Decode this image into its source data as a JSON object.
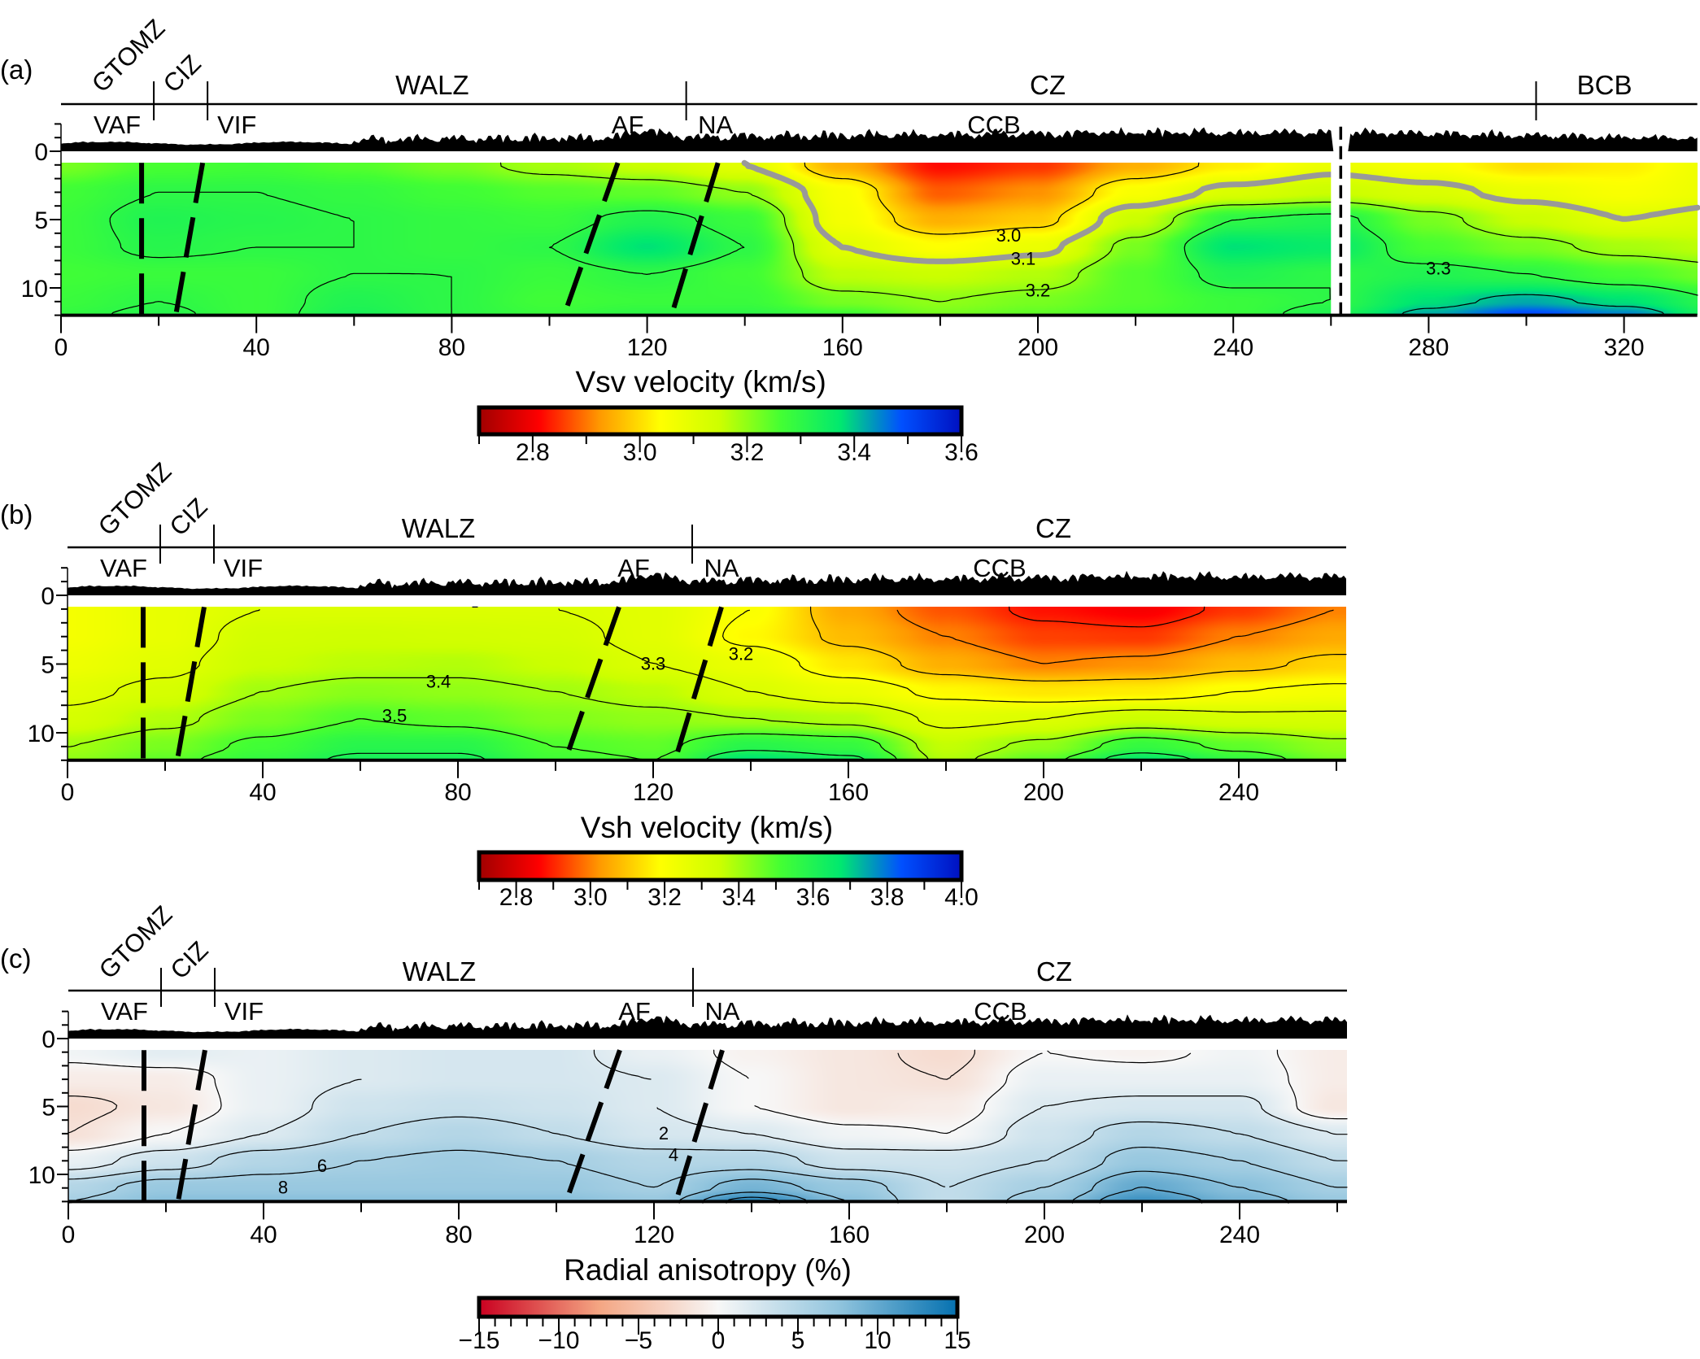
{
  "chart_data": [
    {
      "type": "heatmap",
      "panel_label": "(a)",
      "colorbar_label": "Vsv velocity (km/s)",
      "xlim": [
        0,
        335
      ],
      "ylim": [
        12,
        0
      ],
      "xticks": [
        0,
        40,
        80,
        120,
        160,
        200,
        240,
        280,
        320
      ],
      "xtick_labels": [
        "0",
        "40",
        "80",
        "120",
        "160",
        "200",
        "240",
        "280",
        "320"
      ],
      "yticks": [
        0,
        5,
        10
      ],
      "ytick_labels": [
        "0",
        "5",
        "10"
      ],
      "x_km": [
        0,
        20,
        40,
        60,
        80,
        100,
        120,
        140,
        160,
        180,
        200,
        220,
        240,
        260,
        280,
        300,
        320,
        340
      ],
      "depth_km": [
        1,
        3,
        5,
        7,
        9,
        11,
        12
      ],
      "values": [
        [
          3.22,
          3.26,
          3.27,
          3.25,
          3.22,
          3.18,
          3.15,
          3.1,
          2.95,
          2.82,
          2.85,
          2.95,
          3.02,
          3.08,
          3.05,
          3.0,
          3.02,
          3.08
        ],
        [
          3.27,
          3.3,
          3.3,
          3.29,
          3.27,
          3.25,
          3.24,
          3.2,
          3.05,
          2.88,
          2.92,
          3.05,
          3.12,
          3.15,
          3.12,
          3.08,
          3.05,
          3.08
        ],
        [
          3.28,
          3.32,
          3.31,
          3.3,
          3.29,
          3.28,
          3.32,
          3.28,
          3.06,
          2.95,
          2.98,
          3.15,
          3.3,
          3.32,
          3.22,
          3.15,
          3.1,
          3.12
        ],
        [
          3.28,
          3.31,
          3.3,
          3.3,
          3.29,
          3.3,
          3.38,
          3.3,
          3.1,
          3.04,
          3.08,
          3.22,
          3.38,
          3.36,
          3.26,
          3.22,
          3.18,
          3.16
        ],
        [
          3.27,
          3.28,
          3.28,
          3.3,
          3.3,
          3.28,
          3.3,
          3.27,
          3.16,
          3.15,
          3.17,
          3.25,
          3.32,
          3.3,
          3.32,
          3.3,
          3.26,
          3.22
        ],
        [
          3.28,
          3.3,
          3.28,
          3.32,
          3.3,
          3.27,
          3.28,
          3.28,
          3.22,
          3.2,
          3.22,
          3.25,
          3.28,
          3.3,
          3.38,
          3.42,
          3.38,
          3.3
        ],
        [
          3.29,
          3.31,
          3.28,
          3.33,
          3.3,
          3.28,
          3.3,
          3.3,
          3.27,
          3.22,
          3.24,
          3.26,
          3.28,
          3.32,
          3.42,
          3.5,
          3.45,
          3.32
        ]
      ],
      "contour_levels": [
        3.0,
        3.1,
        3.2,
        3.3,
        3.4,
        3.5
      ],
      "highlighted_contour": 3.1,
      "highlight_color": "#999999",
      "contour_labels": [
        {
          "text": "3.0",
          "x": 194,
          "depth": 6.2
        },
        {
          "text": "3.1",
          "x": 197,
          "depth": 7.9
        },
        {
          "text": "3.2",
          "x": 200,
          "depth": 10.2
        },
        {
          "text": "3.3",
          "x": 282,
          "depth": 8.6
        }
      ],
      "data_gap_km": [
        260,
        264
      ],
      "colorbar": {
        "range": [
          2.7,
          3.6
        ],
        "ticks": [
          2.8,
          3.0,
          3.2,
          3.4,
          3.6
        ],
        "tick_labels": [
          "2.8",
          "3.0",
          "3.2",
          "3.4",
          "3.6"
        ],
        "minor_step": 0.1,
        "stops": [
          "#a00000",
          "#ff0000",
          "#ff9900",
          "#ffff00",
          "#ccff00",
          "#44ff33",
          "#00e870",
          "#0050ff",
          "#0010c0"
        ]
      },
      "zones": [
        {
          "label": "GTOMZ",
          "x": 15,
          "rotated": true
        },
        {
          "label": "CIZ",
          "x": 26,
          "rotated": true
        },
        {
          "label": "WALZ",
          "x": 76
        },
        {
          "label": "CZ",
          "x": 202
        },
        {
          "label": "BCB",
          "x": 316
        }
      ],
      "zone_boundaries": [
        19,
        30,
        128,
        302
      ],
      "structures": [
        {
          "label": "VAF",
          "x": 11.5
        },
        {
          "label": "VIF",
          "x": 36
        },
        {
          "label": "AF",
          "x": 116
        },
        {
          "label": "NA",
          "x": 134
        },
        {
          "label": "CCB",
          "x": 191
        }
      ],
      "fault_traces": [
        {
          "name": "VAF",
          "x_top": 16.5,
          "x_bottom": 16.5
        },
        {
          "name": "VIF",
          "x_top": 29,
          "x_bottom": 23.5
        },
        {
          "name": "AF",
          "x_top": 114,
          "x_bottom": 103
        },
        {
          "name": "NA",
          "x_top": 134.5,
          "x_bottom": 125
        },
        {
          "name": "gap",
          "x_top": 262,
          "x_bottom": 262
        }
      ]
    },
    {
      "type": "heatmap",
      "panel_label": "(b)",
      "colorbar_label": "Vsh velocity (km/s)",
      "xlim": [
        0,
        262
      ],
      "ylim": [
        12,
        0
      ],
      "xticks": [
        0,
        40,
        80,
        120,
        160,
        200,
        240
      ],
      "xtick_labels": [
        "0",
        "40",
        "80",
        "120",
        "160",
        "200",
        "240"
      ],
      "yticks": [
        0,
        5,
        10
      ],
      "ytick_labels": [
        "0",
        "5",
        "10"
      ],
      "x_km": [
        0,
        20,
        40,
        60,
        80,
        100,
        120,
        140,
        160,
        180,
        200,
        220,
        240,
        260
      ],
      "depth_km": [
        1,
        3,
        5,
        7,
        9,
        11,
        12
      ],
      "values": [
        [
          3.22,
          3.26,
          3.3,
          3.3,
          3.3,
          3.3,
          3.28,
          3.2,
          3.05,
          2.95,
          2.88,
          2.85,
          2.92,
          3.0
        ],
        [
          3.22,
          3.26,
          3.33,
          3.34,
          3.33,
          3.32,
          3.28,
          3.18,
          3.08,
          3.0,
          2.93,
          2.92,
          3.0,
          3.05
        ],
        [
          3.24,
          3.28,
          3.35,
          3.37,
          3.38,
          3.35,
          3.3,
          3.25,
          3.15,
          3.06,
          3.0,
          3.02,
          3.08,
          3.12
        ],
        [
          3.28,
          3.32,
          3.4,
          3.43,
          3.42,
          3.4,
          3.37,
          3.3,
          3.25,
          3.18,
          3.15,
          3.16,
          3.2,
          3.22
        ],
        [
          3.32,
          3.38,
          3.45,
          3.5,
          3.48,
          3.44,
          3.42,
          3.4,
          3.38,
          3.28,
          3.3,
          3.35,
          3.32,
          3.32
        ],
        [
          3.4,
          3.45,
          3.52,
          3.58,
          3.58,
          3.5,
          3.48,
          3.58,
          3.55,
          3.36,
          3.42,
          3.55,
          3.48,
          3.42
        ],
        [
          3.42,
          3.48,
          3.55,
          3.62,
          3.62,
          3.52,
          3.5,
          3.68,
          3.62,
          3.38,
          3.48,
          3.66,
          3.55,
          3.45
        ]
      ],
      "contour_levels": [
        2.9,
        3.0,
        3.1,
        3.2,
        3.3,
        3.4,
        3.5,
        3.6
      ],
      "contour_labels": [
        {
          "text": "3.4",
          "x": 76,
          "depth": 6.3
        },
        {
          "text": "3.5",
          "x": 67,
          "depth": 8.8
        },
        {
          "text": "3.3",
          "x": 120,
          "depth": 5.0
        },
        {
          "text": "3.2",
          "x": 138,
          "depth": 4.3
        }
      ],
      "colorbar": {
        "range": [
          2.7,
          4.0
        ],
        "ticks": [
          2.8,
          3.0,
          3.2,
          3.4,
          3.6,
          3.8,
          4.0
        ],
        "tick_labels": [
          "2.8",
          "3.0",
          "3.2",
          "3.4",
          "3.6",
          "3.8",
          "4.0"
        ],
        "minor_step": 0.1,
        "stops": [
          "#a00000",
          "#ff0000",
          "#ff9900",
          "#ffff00",
          "#ccff00",
          "#44ff33",
          "#00e870",
          "#0050ff",
          "#0010c0"
        ]
      },
      "zones": [
        {
          "label": "GTOMZ",
          "x": 15,
          "rotated": true
        },
        {
          "label": "CIZ",
          "x": 26,
          "rotated": true
        },
        {
          "label": "WALZ",
          "x": 76
        },
        {
          "label": "CZ",
          "x": 202
        }
      ],
      "zone_boundaries": [
        19,
        30,
        128
      ],
      "structures": [
        {
          "label": "VAF",
          "x": 11.5
        },
        {
          "label": "VIF",
          "x": 36
        },
        {
          "label": "AF",
          "x": 116
        },
        {
          "label": "NA",
          "x": 134
        },
        {
          "label": "CCB",
          "x": 191
        }
      ],
      "fault_traces": [
        {
          "name": "VAF",
          "x_top": 15.5,
          "x_bottom": 15.5
        },
        {
          "name": "VIF",
          "x_top": 28,
          "x_bottom": 22.5
        },
        {
          "name": "AF",
          "x_top": 113,
          "x_bottom": 102
        },
        {
          "name": "NA",
          "x_top": 134,
          "x_bottom": 124.5
        }
      ]
    },
    {
      "type": "heatmap",
      "panel_label": "(c)",
      "colorbar_label": "Radial anisotropy (%)",
      "xlim": [
        0,
        262
      ],
      "ylim": [
        12,
        0
      ],
      "xticks": [
        0,
        40,
        80,
        120,
        160,
        200,
        240
      ],
      "xtick_labels": [
        "0",
        "40",
        "80",
        "120",
        "160",
        "200",
        "240"
      ],
      "yticks": [
        0,
        5,
        10
      ],
      "ytick_labels": [
        "0",
        "5",
        "10"
      ],
      "x_km": [
        0,
        20,
        40,
        60,
        80,
        100,
        120,
        140,
        160,
        180,
        200,
        220,
        240,
        260
      ],
      "depth_km": [
        1,
        3,
        5,
        7,
        9,
        11,
        12
      ],
      "values": [
        [
          0.5,
          1.5,
          1,
          2,
          2.5,
          2.5,
          1,
          -0.5,
          -1.5,
          -2.5,
          0,
          -0.5,
          0.5,
          -1
        ],
        [
          -1,
          -1,
          1,
          2,
          2.5,
          2.5,
          2,
          0,
          -1.5,
          -2,
          1,
          1,
          1,
          -1
        ],
        [
          -2.5,
          -1.5,
          1,
          3,
          3.5,
          3,
          2,
          0,
          -1.5,
          -1,
          2,
          2.5,
          2.5,
          -1.5
        ],
        [
          -2,
          0,
          2,
          4,
          5,
          4,
          2.5,
          2,
          0.5,
          0,
          3,
          5,
          4,
          2
        ],
        [
          1,
          3,
          5,
          6,
          6.5,
          6,
          5,
          5,
          3,
          3,
          4,
          7,
          6,
          4
        ],
        [
          5,
          7,
          7,
          7,
          7,
          7,
          6,
          9,
          7,
          4,
          6,
          10,
          8,
          6
        ],
        [
          6,
          8,
          8,
          8,
          8,
          8,
          7,
          13,
          8,
          4,
          7,
          12,
          9,
          7
        ]
      ],
      "contour_levels": [
        -2,
        0,
        2,
        4,
        6,
        8,
        10,
        12
      ],
      "contour_labels": [
        {
          "text": "2",
          "x": 122,
          "depth": 7.0
        },
        {
          "text": "4",
          "x": 124,
          "depth": 8.6
        },
        {
          "text": "6",
          "x": 52,
          "depth": 9.4
        },
        {
          "text": "8",
          "x": 44,
          "depth": 11.0
        }
      ],
      "colorbar": {
        "range": [
          -15,
          15
        ],
        "ticks": [
          -15,
          -10,
          -5,
          0,
          5,
          10,
          15
        ],
        "tick_labels": [
          "−15",
          "−10",
          "−5",
          "0",
          "5",
          "10",
          "15"
        ],
        "minor_step": 1,
        "stops": [
          "#ca0020",
          "#f4a582",
          "#f7f7f7",
          "#92c5de",
          "#0571b0"
        ]
      },
      "zones": [
        {
          "label": "GTOMZ",
          "x": 15,
          "rotated": true
        },
        {
          "label": "CIZ",
          "x": 26,
          "rotated": true
        },
        {
          "label": "WALZ",
          "x": 76
        },
        {
          "label": "CZ",
          "x": 202
        }
      ],
      "zone_boundaries": [
        19,
        30,
        128
      ],
      "structures": [
        {
          "label": "VAF",
          "x": 11.5
        },
        {
          "label": "VIF",
          "x": 36
        },
        {
          "label": "AF",
          "x": 116
        },
        {
          "label": "NA",
          "x": 134
        },
        {
          "label": "CCB",
          "x": 191
        }
      ],
      "fault_traces": [
        {
          "name": "VAF",
          "x_top": 15.5,
          "x_bottom": 15.5
        },
        {
          "name": "VIF",
          "x_top": 28,
          "x_bottom": 22.5
        },
        {
          "name": "AF",
          "x_top": 113,
          "x_bottom": 102
        },
        {
          "name": "NA",
          "x_top": 134,
          "x_bottom": 124.5
        }
      ]
    }
  ]
}
